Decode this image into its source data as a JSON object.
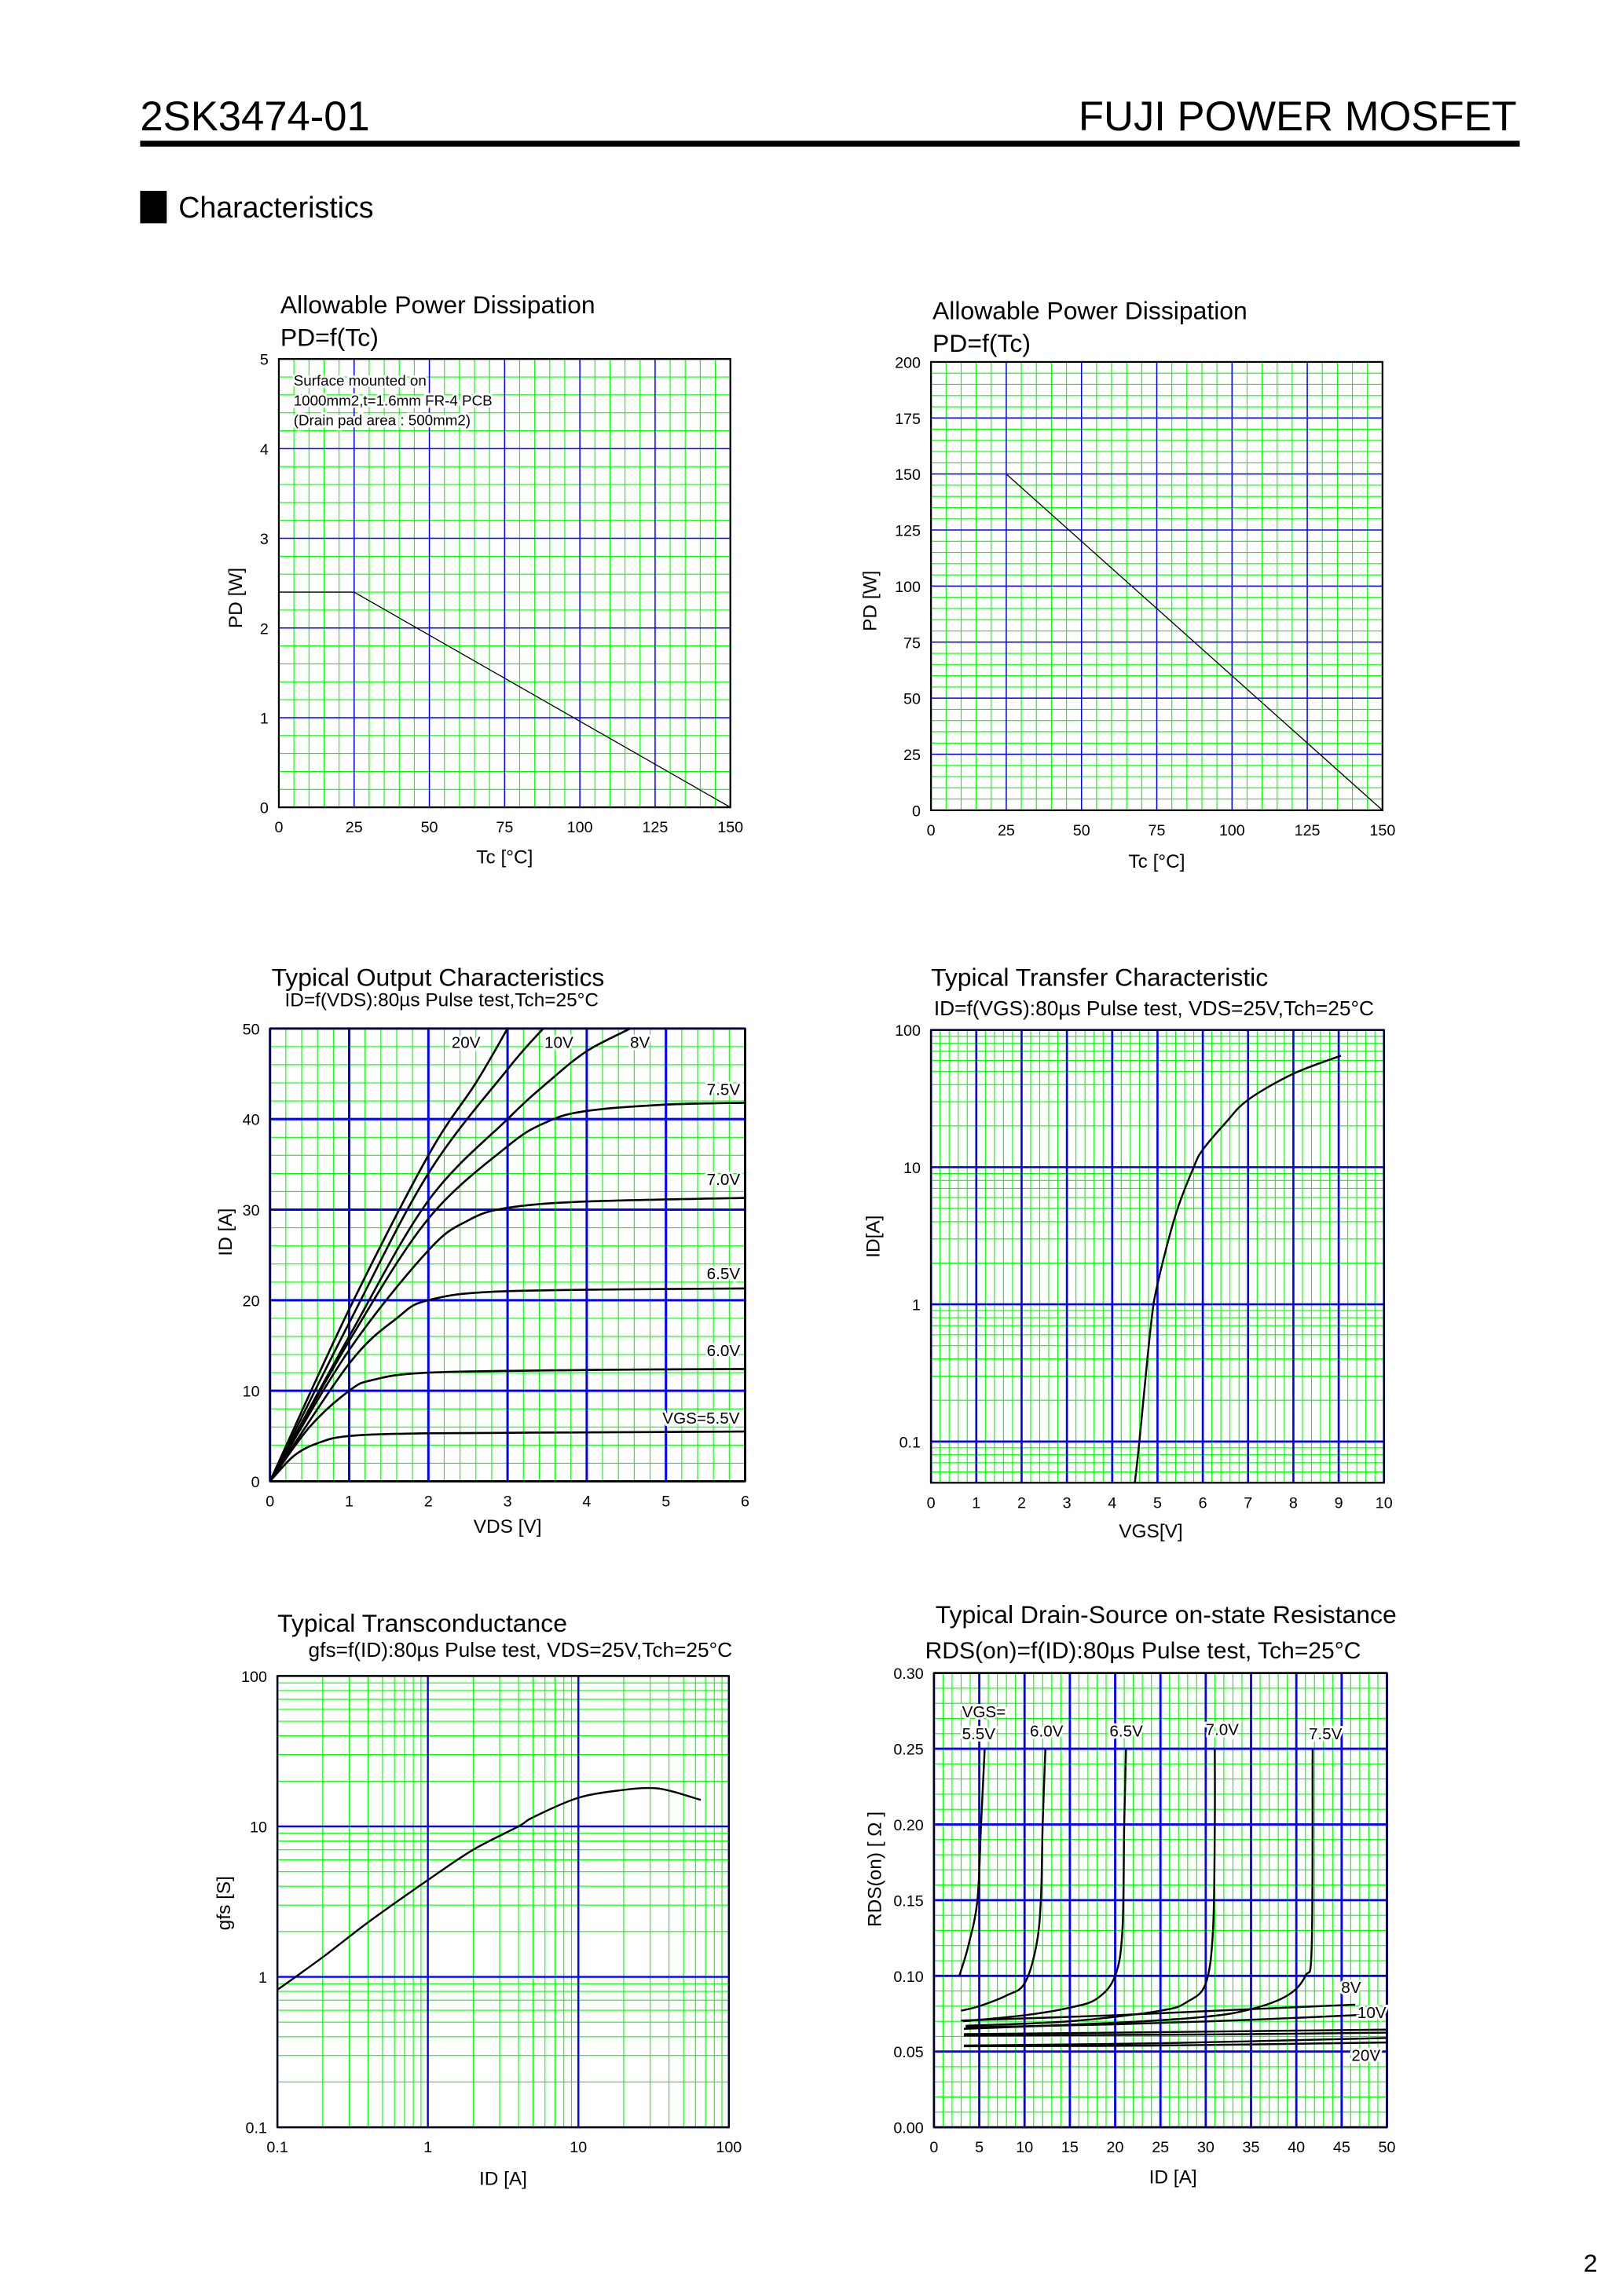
{
  "header": {
    "part_number": "2SK3474-01",
    "product_line": "FUJI POWER MOSFET"
  },
  "section": {
    "title": "Characteristics"
  },
  "page_number": "2",
  "colors": {
    "minor_grid": "#00ff00",
    "major_grid": "#0000ff",
    "curve": "#000000",
    "rule": "#000000"
  },
  "chart_data": [
    {
      "type": "line",
      "title": "Allowable Power Dissipation",
      "subtitle": "PD=f(Tc)",
      "xlabel": "Tc [°C]",
      "ylabel": "PD [W]",
      "xscale": "linear",
      "yscale": "linear",
      "xlim": [
        0,
        150
      ],
      "ylim": [
        0,
        5
      ],
      "grid": true,
      "xticks": [
        "0",
        "25",
        "50",
        "75",
        "100",
        "125",
        "150"
      ],
      "yticks": [
        "0",
        "1",
        "2",
        "3",
        "4",
        "5"
      ],
      "annotation": [
        "Surface mounted on",
        "1000mm2,t=1.6mm FR-4 PCB",
        "(Drain pad area : 500mm2)"
      ],
      "series": [
        {
          "points": [
            [
              0,
              2.4
            ],
            [
              25,
              2.4
            ],
            [
              150,
              0
            ]
          ]
        }
      ]
    },
    {
      "type": "line",
      "title": "Allowable Power Dissipation",
      "subtitle": "PD=f(Tc)",
      "xlabel": "Tc [°C]",
      "ylabel": "PD [W]",
      "xscale": "linear",
      "yscale": "linear",
      "xlim": [
        0,
        150
      ],
      "ylim": [
        0,
        200
      ],
      "grid": true,
      "xticks": [
        "0",
        "25",
        "50",
        "75",
        "100",
        "125",
        "150"
      ],
      "yticks": [
        "0",
        "25",
        "50",
        "75",
        "100",
        "125",
        "150",
        "175",
        "200"
      ],
      "series": [
        {
          "points": [
            [
              25,
              150
            ],
            [
              150,
              0
            ]
          ]
        }
      ]
    },
    {
      "type": "line",
      "title": "Typical Output Characteristics",
      "subtitle": "ID=f(VDS):80µs Pulse test,Tch=25°C",
      "xlabel": "VDS [V]",
      "ylabel": "ID [A]",
      "xscale": "linear",
      "yscale": "linear",
      "xlim": [
        0,
        6
      ],
      "ylim": [
        0,
        50
      ],
      "grid": true,
      "xticks": [
        "0",
        "1",
        "2",
        "3",
        "4",
        "5",
        "6"
      ],
      "yticks": [
        "0",
        "10",
        "20",
        "30",
        "40",
        "50"
      ],
      "series": [
        {
          "name": "20V",
          "points": [
            [
              0,
              0
            ],
            [
              1,
              19
            ],
            [
              2,
              36
            ],
            [
              2.6,
              44
            ],
            [
              3.0,
              50
            ]
          ]
        },
        {
          "name": "10V",
          "points": [
            [
              0,
              0
            ],
            [
              1,
              17.5
            ],
            [
              2,
              34
            ],
            [
              3,
              45.5
            ],
            [
              3.45,
              50
            ]
          ]
        },
        {
          "name": "8V",
          "points": [
            [
              0,
              0
            ],
            [
              1,
              16
            ],
            [
              2,
              31
            ],
            [
              3,
              40
            ],
            [
              3.5,
              44
            ],
            [
              4,
              47.5
            ],
            [
              4.55,
              50
            ]
          ]
        },
        {
          "name": "7.5V",
          "points": [
            [
              0,
              0
            ],
            [
              1,
              15.5
            ],
            [
              2,
              29
            ],
            [
              3,
              37
            ],
            [
              3.5,
              39.7
            ],
            [
              4,
              40.9
            ],
            [
              5,
              41.6
            ],
            [
              6,
              41.8
            ]
          ]
        },
        {
          "name": "7.0V",
          "points": [
            [
              0,
              0
            ],
            [
              1,
              14.5
            ],
            [
              2,
              25.5
            ],
            [
              2.5,
              28.8
            ],
            [
              3,
              30.2
            ],
            [
              4,
              30.9
            ],
            [
              6,
              31.3
            ]
          ]
        },
        {
          "name": "6.5V",
          "points": [
            [
              0,
              0
            ],
            [
              1,
              13
            ],
            [
              1.6,
              18
            ],
            [
              2,
              20
            ],
            [
              3,
              21
            ],
            [
              6,
              21.3
            ]
          ]
        },
        {
          "name": "6.0V",
          "points": [
            [
              0,
              0
            ],
            [
              0.5,
              6
            ],
            [
              1,
              10
            ],
            [
              1.3,
              11.2
            ],
            [
              2,
              12
            ],
            [
              4,
              12.3
            ],
            [
              6,
              12.4
            ]
          ]
        },
        {
          "name": "VGS=5.5V",
          "points": [
            [
              0,
              0
            ],
            [
              0.3,
              2.8
            ],
            [
              0.6,
              4.2
            ],
            [
              1,
              5
            ],
            [
              2,
              5.3
            ],
            [
              4,
              5.4
            ],
            [
              6,
              5.5
            ]
          ]
        }
      ]
    },
    {
      "type": "line",
      "title": "Typical Transfer Characteristic",
      "subtitle": "ID=f(VGS):80µs Pulse test, VDS=25V,Tch=25°C",
      "xlabel": "VGS[V]",
      "ylabel": "ID[A]",
      "xscale": "linear",
      "yscale": "log",
      "xlim": [
        0,
        10
      ],
      "ylim": [
        0.05,
        100
      ],
      "grid": true,
      "xticks": [
        "0",
        "1",
        "2",
        "3",
        "4",
        "5",
        "6",
        "7",
        "8",
        "9",
        "10"
      ],
      "yticks": [
        "0.1",
        "1",
        "10",
        "100"
      ],
      "series": [
        {
          "points": [
            [
              4.5,
              0.05
            ],
            [
              4.6,
              0.1
            ],
            [
              4.85,
              0.68
            ],
            [
              5.0,
              1.4
            ],
            [
              5.4,
              4.5
            ],
            [
              5.8,
              10
            ],
            [
              6.0,
              13.4
            ],
            [
              6.5,
              21
            ],
            [
              7,
              31
            ],
            [
              8,
              48
            ],
            [
              9.05,
              65
            ]
          ]
        }
      ]
    },
    {
      "type": "line",
      "title": "Typical Transconductance",
      "subtitle": "gfs=f(ID):80µs Pulse test, VDS=25V,Tch=25°C",
      "xlabel": "ID [A]",
      "ylabel": "gfs [S]",
      "xscale": "log",
      "yscale": "log",
      "xlim": [
        0.1,
        100
      ],
      "ylim": [
        0.1,
        100
      ],
      "grid": true,
      "xticks": [
        "0.1",
        "1",
        "10",
        "100"
      ],
      "yticks": [
        "0.1",
        "1",
        "10",
        "100"
      ],
      "series": [
        {
          "points": [
            [
              0.1,
              0.82
            ],
            [
              0.2,
              1.35
            ],
            [
              0.4,
              2.3
            ],
            [
              1,
              4.4
            ],
            [
              2,
              7
            ],
            [
              4,
              10
            ],
            [
              5,
              11.5
            ],
            [
              10,
              15.5
            ],
            [
              20,
              17.5
            ],
            [
              30,
              18
            ],
            [
              40,
              17.3
            ],
            [
              65,
              15
            ]
          ]
        }
      ]
    },
    {
      "type": "line",
      "title": "Typical Drain-Source on-state Resistance",
      "subtitle": "RDS(on)=f(ID):80µs Pulse test, Tch=25°C",
      "xlabel": "ID [A]",
      "ylabel": "RDS(on) [ Ω ]",
      "xscale": "linear",
      "yscale": "linear",
      "xlim": [
        0,
        50
      ],
      "ylim": [
        0,
        0.3
      ],
      "grid": true,
      "xticks": [
        "0",
        "5",
        "10",
        "15",
        "20",
        "25",
        "30",
        "35",
        "40",
        "45",
        "50"
      ],
      "yticks": [
        "0.00",
        "0.05",
        "0.10",
        "0.15",
        "0.20",
        "0.25",
        "0.30"
      ],
      "label_prefix": "VGS=",
      "series": [
        {
          "name": "5.5V",
          "points": [
            [
              2.8,
              0.1
            ],
            [
              3.8,
              0.12
            ],
            [
              4.8,
              0.15
            ],
            [
              5.2,
              0.2
            ],
            [
              5.6,
              0.25
            ]
          ]
        },
        {
          "name": "6.0V",
          "points": [
            [
              3,
              0.077
            ],
            [
              5,
              0.08
            ],
            [
              8,
              0.087
            ],
            [
              10,
              0.095
            ],
            [
              11.3,
              0.12
            ],
            [
              11.8,
              0.15
            ],
            [
              12,
              0.2
            ],
            [
              12.3,
              0.25
            ]
          ]
        },
        {
          "name": "6.5V",
          "points": [
            [
              3.2,
              0.07
            ],
            [
              10,
              0.074
            ],
            [
              15,
              0.079
            ],
            [
              18,
              0.085
            ],
            [
              20,
              0.1
            ],
            [
              20.8,
              0.13
            ],
            [
              21,
              0.2
            ],
            [
              21.2,
              0.25
            ]
          ]
        },
        {
          "name": "7.0V",
          "points": [
            [
              3.5,
              0.067
            ],
            [
              15,
              0.07
            ],
            [
              25,
              0.077
            ],
            [
              28,
              0.083
            ],
            [
              30,
              0.095
            ],
            [
              30.8,
              0.13
            ],
            [
              31,
              0.2
            ],
            [
              31,
              0.25
            ]
          ]
        },
        {
          "name": "7.5V",
          "points": [
            [
              3.3,
              0.065
            ],
            [
              20,
              0.069
            ],
            [
              30,
              0.073
            ],
            [
              35,
              0.078
            ],
            [
              39,
              0.087
            ],
            [
              41,
              0.1
            ],
            [
              41.7,
              0.12
            ],
            [
              41.8,
              0.25
            ]
          ]
        },
        {
          "name": "8V",
          "points": [
            [
              3,
              0.0705
            ],
            [
              20,
              0.074
            ],
            [
              35,
              0.078
            ],
            [
              46.5,
              0.081
            ]
          ]
        },
        {
          "name": "10V",
          "points": [
            [
              3.5,
              0.066
            ],
            [
              20,
              0.068
            ],
            [
              35,
              0.071
            ],
            [
              50,
              0.075
            ]
          ]
        },
        {
          "points": [
            [
              3.3,
              0.0615
            ],
            [
              20,
              0.0625
            ],
            [
              35,
              0.0635
            ],
            [
              50,
              0.0645
            ]
          ]
        },
        {
          "points": [
            [
              3.3,
              0.0605
            ],
            [
              20,
              0.061
            ],
            [
              35,
              0.0615
            ],
            [
              50,
              0.0625
            ]
          ]
        },
        {
          "name": "20V",
          "points": [
            [
              3.3,
              0.054
            ],
            [
              25,
              0.0555
            ],
            [
              50,
              0.059
            ]
          ]
        },
        {
          "points": [
            [
              3.3,
              0.0535
            ],
            [
              25,
              0.054
            ],
            [
              50,
              0.056
            ]
          ]
        }
      ]
    }
  ]
}
